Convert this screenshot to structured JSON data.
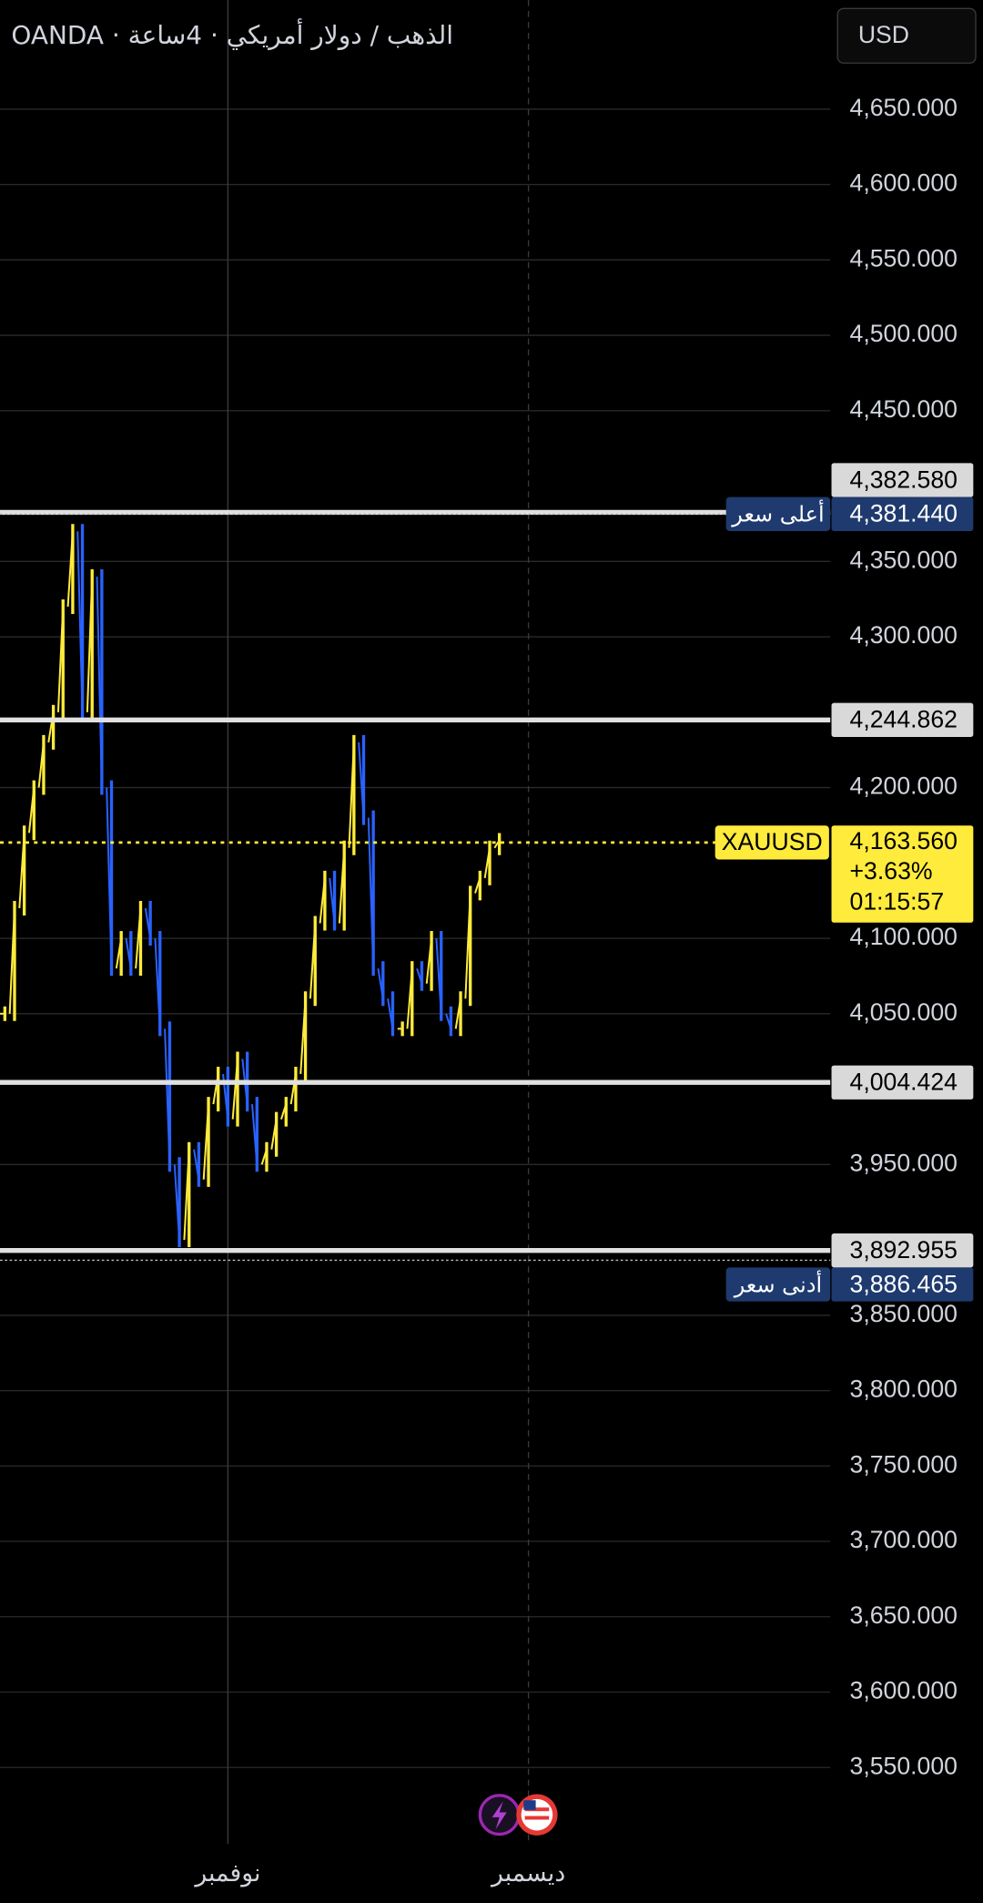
{
  "chart_data": {
    "type": "line",
    "title": "الذهب / دولار أمريكي · 4ساعة · OANDA",
    "currency_button": "USD",
    "up_color": "#ffeb3b",
    "down_color": "#2962ff",
    "categories": [
      null,
      null,
      null,
      null,
      null,
      null,
      null,
      null,
      null,
      null,
      null,
      null,
      null,
      null,
      null,
      null,
      null,
      null,
      null,
      null,
      null,
      null,
      null,
      "نوفمبر",
      null,
      null,
      null,
      null,
      null,
      null,
      null,
      null,
      null,
      null,
      null,
      null,
      null,
      null,
      null,
      null,
      null,
      null,
      null,
      null,
      null,
      null,
      null,
      null,
      null,
      null,
      null,
      null,
      null,
      null,
      "ديسمبر",
      null,
      null,
      null,
      null,
      null,
      null,
      null,
      null,
      null,
      null,
      null,
      null,
      null,
      null,
      null,
      null,
      null,
      null,
      null,
      null,
      null,
      null,
      null,
      null,
      null,
      null,
      null,
      null,
      null,
      null,
      null
    ],
    "values": [
      4050,
      4120,
      4170,
      4200,
      4230,
      4250,
      4320,
      4370,
      4250,
      4340,
      4200,
      4080,
      4100,
      4080,
      4120,
      4100,
      4040,
      3950,
      3900,
      3960,
      3940,
      3990,
      4010,
      3980,
      4020,
      3990,
      3950,
      3960,
      3980,
      3990,
      4010,
      4060,
      4110,
      4140,
      4110,
      4160,
      4230,
      4180,
      4080,
      4060,
      4040,
      4040,
      4080,
      4070,
      4100,
      4050,
      4040,
      4060,
      4130,
      4140,
      4160,
      4165,
      null,
      null,
      null,
      null,
      null,
      null,
      null,
      null,
      null,
      null,
      null,
      null,
      null,
      null,
      null,
      null,
      null,
      null,
      null,
      null,
      null,
      null,
      null,
      null,
      null,
      null,
      null,
      null,
      null,
      null,
      null,
      null,
      null,
      null
    ],
    "ylim": [
      3500,
      4700
    ],
    "yticks": [
      {
        "value": 3550,
        "label": "3,550.000"
      },
      {
        "value": 3600,
        "label": "3,600.000"
      },
      {
        "value": 3650,
        "label": "3,650.000"
      },
      {
        "value": 3700,
        "label": "3,700.000"
      },
      {
        "value": 3750,
        "label": "3,750.000"
      },
      {
        "value": 3800,
        "label": "3,800.000"
      },
      {
        "value": 3850,
        "label": "3,850.000"
      },
      {
        "value": 3950,
        "label": "3,950.000"
      },
      {
        "value": 4050,
        "label": "4,050.000"
      },
      {
        "value": 4100,
        "label": "4,100.000"
      },
      {
        "value": 4200,
        "label": "4,200.000"
      },
      {
        "value": 4300,
        "label": "4,300.000"
      },
      {
        "value": 4350,
        "label": "4,350.000"
      },
      {
        "value": 4450,
        "label": "4,450.000"
      },
      {
        "value": 4500,
        "label": "4,500.000"
      },
      {
        "value": 4550,
        "label": "4,550.000"
      },
      {
        "value": 4600,
        "label": "4,600.000"
      },
      {
        "value": 4650,
        "label": "4,650.000"
      }
    ],
    "grid": true,
    "price_lines": [
      {
        "value": 4382.58,
        "label": "4,382.580"
      },
      {
        "value": 4244.862,
        "label": "4,244.862"
      },
      {
        "value": 4004.424,
        "label": "4,004.424"
      },
      {
        "value": 3892.955,
        "label": "3,892.955"
      }
    ],
    "high": {
      "name": "أعلى سعر",
      "value": 4381.44,
      "label": "4,381.440"
    },
    "low": {
      "name": "أدنى سعر",
      "value": 3886.465,
      "label": "3,886.465"
    },
    "last": {
      "symbol": "XAUUSD",
      "value": 4163.56,
      "label": "4,163.560",
      "change": "+3.63%",
      "countdown": "01:15:57"
    }
  }
}
